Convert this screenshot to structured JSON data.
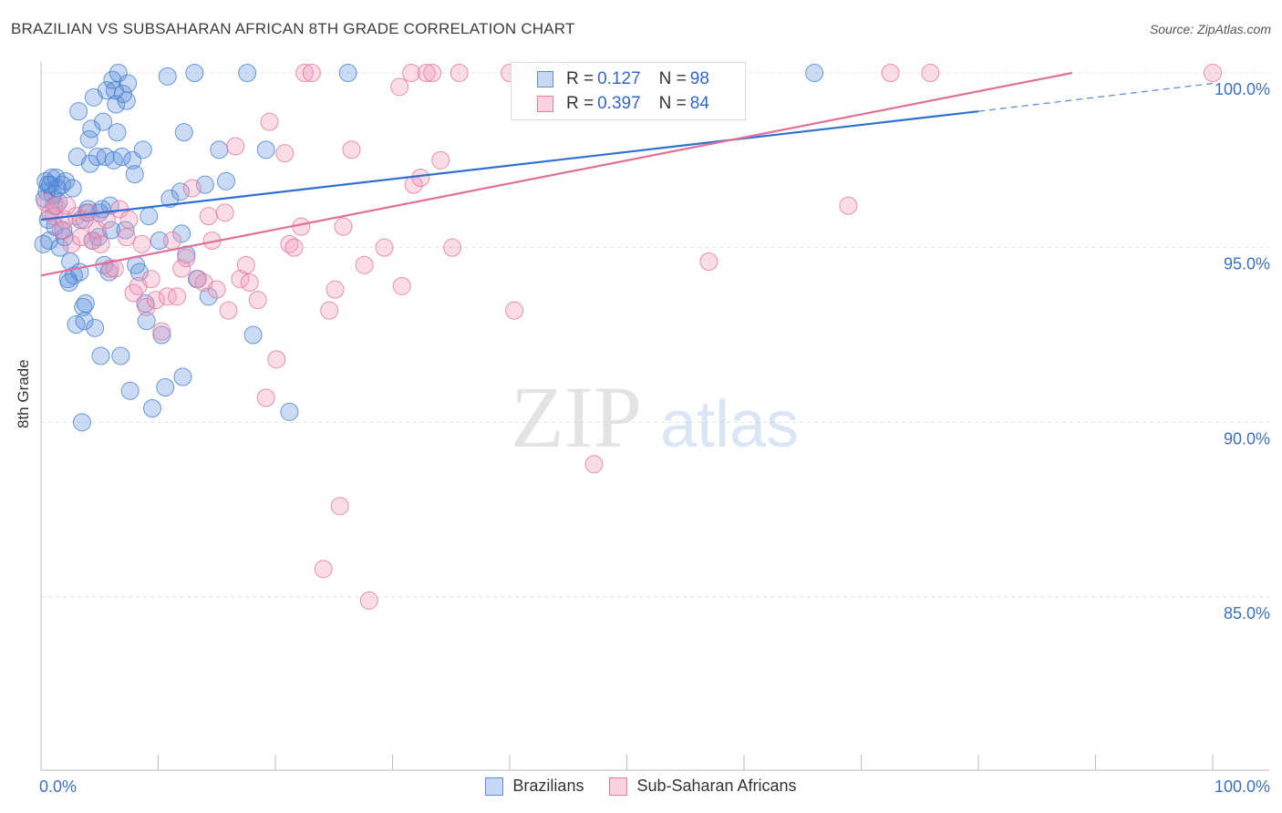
{
  "header": {
    "title": "BRAZILIAN VS SUBSAHARAN AFRICAN 8TH GRADE CORRELATION CHART",
    "source": "Source: ZipAtlas.com"
  },
  "watermark": {
    "zip": "ZIP",
    "atlas": "atlas"
  },
  "legend_stats": [
    {
      "r_label": "R =",
      "r_value": "0.127",
      "n_label": "N =",
      "n_value": "98",
      "color": "#5b8fd9"
    },
    {
      "r_label": "R =",
      "r_value": "0.397",
      "n_label": "N =",
      "n_value": "84",
      "color": "#e87aa0"
    }
  ],
  "chart_data": {
    "type": "scatter",
    "title": "BRAZILIAN VS SUBSAHARAN AFRICAN 8TH GRADE CORRELATION CHART",
    "xlabel": "",
    "ylabel": "8th Grade",
    "xlim": [
      0,
      100
    ],
    "ylim": [
      80.5,
      100.8
    ],
    "x_tick_labels": [
      "0.0%",
      "100.0%"
    ],
    "y_ticks": [
      {
        "value": 100,
        "label": "100.0%"
      },
      {
        "value": 95,
        "label": "95.0%"
      },
      {
        "value": 90,
        "label": "90.0%"
      },
      {
        "value": 85,
        "label": "85.0%"
      }
    ],
    "grid": true,
    "legend_position": "bottom",
    "series": [
      {
        "name": "Brazilians",
        "color": "#5b8fd9",
        "stroke": "#3f7bd0",
        "trend": {
          "x": [
            0,
            80
          ],
          "y": [
            95.8,
            98.9
          ]
        },
        "trend_extension": {
          "x": [
            80,
            100
          ],
          "y": [
            98.9,
            99.7
          ]
        },
        "points": [
          [
            0.3,
            96.4
          ],
          [
            0.4,
            96.9
          ],
          [
            0.5,
            96.6
          ],
          [
            0.6,
            95.8
          ],
          [
            0.7,
            95.2
          ],
          [
            0.8,
            96.8
          ],
          [
            0.9,
            97.0
          ],
          [
            1.0,
            96.5
          ],
          [
            1.1,
            96.2
          ],
          [
            1.2,
            95.6
          ],
          [
            1.3,
            97.0
          ],
          [
            1.4,
            96.7
          ],
          [
            1.5,
            96.3
          ],
          [
            1.6,
            95.0
          ],
          [
            1.8,
            96.8
          ],
          [
            2.0,
            95.3
          ],
          [
            2.1,
            96.9
          ],
          [
            2.3,
            94.1
          ],
          [
            2.5,
            94.6
          ],
          [
            2.7,
            96.7
          ],
          [
            2.8,
            94.2
          ],
          [
            3.0,
            92.8
          ],
          [
            3.1,
            97.6
          ],
          [
            3.2,
            98.9
          ],
          [
            3.3,
            94.3
          ],
          [
            3.4,
            95.8
          ],
          [
            3.5,
            90.0
          ],
          [
            3.6,
            93.3
          ],
          [
            3.7,
            92.9
          ],
          [
            3.8,
            93.4
          ],
          [
            4.0,
            96.1
          ],
          [
            4.1,
            98.1
          ],
          [
            4.2,
            97.4
          ],
          [
            4.3,
            98.4
          ],
          [
            4.4,
            95.2
          ],
          [
            4.5,
            99.3
          ],
          [
            4.6,
            92.7
          ],
          [
            4.8,
            97.6
          ],
          [
            4.9,
            95.3
          ],
          [
            5.0,
            96.0
          ],
          [
            5.1,
            91.9
          ],
          [
            5.3,
            98.6
          ],
          [
            5.4,
            94.5
          ],
          [
            5.5,
            97.6
          ],
          [
            5.6,
            99.5
          ],
          [
            5.8,
            94.3
          ],
          [
            5.9,
            96.2
          ],
          [
            6.0,
            95.5
          ],
          [
            6.1,
            99.8
          ],
          [
            6.2,
            97.5
          ],
          [
            6.3,
            99.5
          ],
          [
            6.4,
            99.1
          ],
          [
            6.5,
            98.3
          ],
          [
            6.6,
            100.0
          ],
          [
            6.8,
            91.9
          ],
          [
            6.9,
            97.6
          ],
          [
            7.0,
            99.4
          ],
          [
            7.2,
            95.5
          ],
          [
            7.3,
            99.2
          ],
          [
            7.4,
            99.7
          ],
          [
            7.6,
            90.9
          ],
          [
            7.8,
            97.5
          ],
          [
            8.0,
            97.1
          ],
          [
            8.4,
            94.3
          ],
          [
            8.7,
            97.8
          ],
          [
            8.9,
            93.4
          ],
          [
            9.0,
            92.9
          ],
          [
            9.2,
            95.9
          ],
          [
            9.5,
            90.4
          ],
          [
            10.1,
            95.2
          ],
          [
            10.3,
            92.5
          ],
          [
            10.6,
            91.0
          ],
          [
            10.8,
            99.9
          ],
          [
            11.0,
            96.4
          ],
          [
            11.9,
            96.6
          ],
          [
            12.0,
            95.4
          ],
          [
            12.1,
            91.3
          ],
          [
            12.2,
            98.3
          ],
          [
            12.4,
            94.8
          ],
          [
            13.1,
            100.0
          ],
          [
            13.3,
            94.1
          ],
          [
            14.0,
            96.8
          ],
          [
            14.3,
            93.6
          ],
          [
            15.2,
            97.8
          ],
          [
            15.8,
            96.9
          ],
          [
            17.6,
            100.0
          ],
          [
            18.1,
            92.5
          ],
          [
            19.2,
            97.8
          ],
          [
            21.2,
            90.3
          ],
          [
            26.2,
            100.0
          ],
          [
            66.0,
            100.0
          ],
          [
            0.2,
            95.1
          ],
          [
            0.6,
            96.8
          ],
          [
            1.9,
            95.5
          ],
          [
            2.4,
            94.0
          ],
          [
            3.9,
            96.0
          ],
          [
            5.2,
            96.1
          ],
          [
            8.1,
            94.5
          ]
        ]
      },
      {
        "name": "Sub-Saharan Africans",
        "color": "#f09bb9",
        "stroke": "#e0709a",
        "trend": {
          "x": [
            0,
            88
          ],
          "y": [
            94.2,
            100.0
          ]
        },
        "points": [
          [
            0.4,
            96.3
          ],
          [
            0.8,
            96.0
          ],
          [
            1.1,
            95.9
          ],
          [
            1.3,
            96.2
          ],
          [
            1.7,
            95.5
          ],
          [
            2.0,
            95.8
          ],
          [
            2.2,
            96.2
          ],
          [
            2.6,
            95.1
          ],
          [
            3.0,
            95.9
          ],
          [
            3.4,
            95.3
          ],
          [
            3.7,
            95.8
          ],
          [
            4.1,
            96.0
          ],
          [
            4.4,
            95.2
          ],
          [
            4.8,
            95.5
          ],
          [
            5.1,
            95.1
          ],
          [
            5.6,
            95.8
          ],
          [
            5.9,
            94.4
          ],
          [
            6.3,
            94.4
          ],
          [
            6.7,
            96.1
          ],
          [
            7.3,
            95.3
          ],
          [
            7.5,
            95.8
          ],
          [
            7.9,
            93.7
          ],
          [
            8.3,
            93.9
          ],
          [
            8.6,
            95.1
          ],
          [
            9.0,
            93.3
          ],
          [
            9.4,
            94.1
          ],
          [
            9.8,
            93.5
          ],
          [
            10.3,
            92.6
          ],
          [
            10.8,
            93.6
          ],
          [
            11.2,
            95.2
          ],
          [
            11.6,
            93.6
          ],
          [
            12.0,
            94.4
          ],
          [
            12.4,
            94.7
          ],
          [
            12.9,
            96.7
          ],
          [
            13.4,
            94.1
          ],
          [
            13.9,
            94.0
          ],
          [
            14.3,
            95.9
          ],
          [
            14.6,
            95.2
          ],
          [
            15.0,
            93.8
          ],
          [
            15.7,
            96.0
          ],
          [
            16.0,
            93.2
          ],
          [
            16.6,
            97.9
          ],
          [
            17.0,
            94.1
          ],
          [
            17.5,
            94.5
          ],
          [
            17.8,
            94.0
          ],
          [
            18.5,
            93.5
          ],
          [
            19.2,
            90.7
          ],
          [
            19.5,
            98.6
          ],
          [
            20.1,
            91.8
          ],
          [
            20.8,
            97.7
          ],
          [
            21.2,
            95.1
          ],
          [
            21.6,
            95.0
          ],
          [
            22.2,
            95.6
          ],
          [
            22.5,
            100.0
          ],
          [
            23.1,
            100.0
          ],
          [
            24.1,
            85.8
          ],
          [
            24.6,
            93.2
          ],
          [
            25.1,
            93.8
          ],
          [
            25.5,
            87.6
          ],
          [
            25.8,
            95.6
          ],
          [
            26.5,
            97.8
          ],
          [
            27.6,
            94.5
          ],
          [
            28.0,
            84.9
          ],
          [
            29.3,
            95.0
          ],
          [
            30.6,
            99.6
          ],
          [
            30.8,
            93.9
          ],
          [
            31.6,
            100.0
          ],
          [
            31.8,
            96.8
          ],
          [
            32.4,
            97.0
          ],
          [
            32.9,
            100.0
          ],
          [
            33.4,
            100.0
          ],
          [
            34.1,
            97.5
          ],
          [
            35.1,
            95.0
          ],
          [
            35.7,
            100.0
          ],
          [
            40.0,
            100.0
          ],
          [
            40.4,
            93.2
          ],
          [
            41.9,
            100.0
          ],
          [
            44.6,
            100.0
          ],
          [
            47.2,
            88.8
          ],
          [
            57.0,
            94.6
          ],
          [
            68.9,
            96.2
          ],
          [
            72.5,
            100.0
          ],
          [
            75.9,
            100.0
          ],
          [
            100.0,
            100.0
          ]
        ]
      }
    ]
  }
}
